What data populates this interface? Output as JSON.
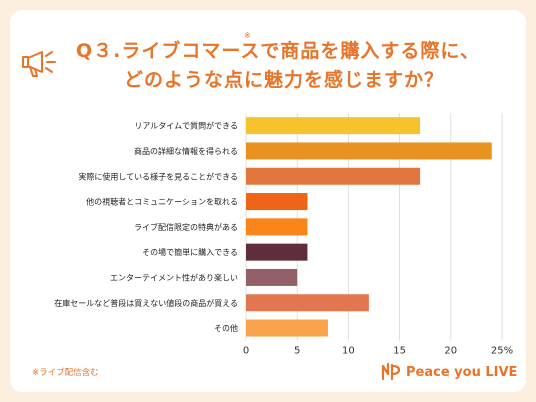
{
  "title": {
    "line1": "Q３.ライブコマースで商品を購入する際に、",
    "line2": "どのような点に魅力を感じますか？",
    "mark": "※"
  },
  "footnote": "※ライブ配信含む",
  "brand": {
    "name": "Peace you LIVE",
    "icon": "peace-you-live-logo-icon",
    "color": "#e8742a"
  },
  "colors": {
    "background": "#fbeedd",
    "accent": "#e8742a",
    "grid": "#d9d9d9"
  },
  "chart_data": {
    "type": "bar",
    "orientation": "horizontal",
    "categories": [
      "リアルタイムで質問ができる",
      "商品の詳細な情報を得られる",
      "実際に使用している様子を見ることができる",
      "他の視聴者とコミュニケーションを取れる",
      "ライブ配信限定の特典がある",
      "その場で簡単に購入できる",
      "エンターテイメント性があり楽しい",
      "在庫セールなど普段は買えない値段の商品が買える",
      "その他"
    ],
    "values": [
      17,
      24,
      17,
      6,
      6,
      6,
      5,
      12,
      8
    ],
    "colors": [
      "#f6c22d",
      "#e8921f",
      "#e2773d",
      "#f06417",
      "#f98419",
      "#5e2f3a",
      "#93606a",
      "#e2774f",
      "#f9a44c"
    ],
    "x_ticks": [
      "0",
      "5",
      "10",
      "15",
      "20",
      "25%"
    ],
    "xlim": [
      0,
      25
    ],
    "grid": true
  }
}
